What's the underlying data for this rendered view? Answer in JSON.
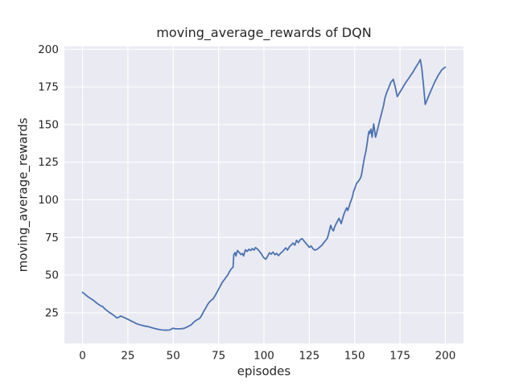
{
  "chart_data": {
    "type": "line",
    "title": "moving_average_rewards of DQN",
    "xlabel": "episodes",
    "ylabel": "moving_average_rewards",
    "x_ticks": [
      0,
      25,
      50,
      75,
      100,
      125,
      150,
      175,
      200
    ],
    "y_ticks": [
      25,
      50,
      75,
      100,
      125,
      150,
      175,
      200
    ],
    "xlim": [
      -10,
      210
    ],
    "ylim": [
      4.5,
      202
    ],
    "grid": true,
    "legend": "none",
    "style": "seaborn-darkgrid",
    "colors": {
      "figure_background": "#ffffff",
      "plot_background": "#eaeaf2",
      "grid": "#ffffff",
      "line": "#4c72b0",
      "text": "#262626"
    },
    "series": [
      {
        "points": [
          [
            0,
            38.5
          ],
          [
            1,
            37.6
          ],
          [
            2,
            36.6
          ],
          [
            3,
            35.6
          ],
          [
            4,
            34.8
          ],
          [
            5,
            34.0
          ],
          [
            6,
            33.2
          ],
          [
            7,
            32.2
          ],
          [
            8,
            31.2
          ],
          [
            9,
            30.4
          ],
          [
            10,
            29.6
          ],
          [
            11,
            29.2
          ],
          [
            12,
            27.9
          ],
          [
            13,
            26.9
          ],
          [
            14,
            25.9
          ],
          [
            15,
            25.0
          ],
          [
            16,
            24.3
          ],
          [
            17,
            23.4
          ],
          [
            18,
            22.5
          ],
          [
            19,
            21.5
          ],
          [
            20,
            22.0
          ],
          [
            21,
            22.8
          ],
          [
            22,
            22.3
          ],
          [
            24,
            21.2
          ],
          [
            26,
            20.0
          ],
          [
            28,
            18.8
          ],
          [
            30,
            17.6
          ],
          [
            32,
            16.8
          ],
          [
            34,
            16.2
          ],
          [
            36,
            15.8
          ],
          [
            38,
            15.1
          ],
          [
            40,
            14.4
          ],
          [
            42,
            13.9
          ],
          [
            44,
            13.5
          ],
          [
            46,
            13.4
          ],
          [
            48,
            13.5
          ],
          [
            50,
            14.7
          ],
          [
            51,
            14.3
          ],
          [
            52,
            14.3
          ],
          [
            54,
            14.3
          ],
          [
            56,
            14.6
          ],
          [
            58,
            15.7
          ],
          [
            60,
            17.0
          ],
          [
            61,
            18.3
          ],
          [
            62,
            19.4
          ],
          [
            63,
            20.2
          ],
          [
            64,
            20.8
          ],
          [
            65,
            21.8
          ],
          [
            66,
            24.0
          ],
          [
            67,
            26.3
          ],
          [
            68,
            28.3
          ],
          [
            69,
            30.5
          ],
          [
            70,
            32.2
          ],
          [
            71,
            33.3
          ],
          [
            72,
            34.2
          ],
          [
            73,
            36.2
          ],
          [
            74,
            38.3
          ],
          [
            75,
            40.6
          ],
          [
            76,
            42.8
          ],
          [
            77,
            45.1
          ],
          [
            78,
            46.7
          ],
          [
            79,
            48.4
          ],
          [
            80,
            49.9
          ],
          [
            81,
            52.3
          ],
          [
            82,
            54.1
          ],
          [
            83,
            55.3
          ],
          [
            83.4,
            63.6
          ],
          [
            84,
            64.9
          ],
          [
            84.6,
            62.7
          ],
          [
            85.4,
            66.3
          ],
          [
            86.4,
            65.0
          ],
          [
            87.3,
            63.6
          ],
          [
            88,
            64.4
          ],
          [
            88.8,
            62.7
          ],
          [
            89.8,
            66.8
          ],
          [
            90.8,
            65.7
          ],
          [
            91.7,
            67.2
          ],
          [
            92.7,
            66.3
          ],
          [
            93.5,
            67.6
          ],
          [
            94.6,
            66.6
          ],
          [
            95.3,
            68.3
          ],
          [
            96.5,
            67.2
          ],
          [
            97.6,
            65.7
          ],
          [
            98.7,
            63.9
          ],
          [
            99.7,
            61.8
          ],
          [
            101,
            60.5
          ],
          [
            102,
            62.4
          ],
          [
            103,
            64.8
          ],
          [
            104,
            63.9
          ],
          [
            105,
            65.3
          ],
          [
            106,
            63.5
          ],
          [
            107,
            64.4
          ],
          [
            108,
            62.9
          ],
          [
            109,
            64.3
          ],
          [
            110,
            65.4
          ],
          [
            111,
            66.6
          ],
          [
            112,
            68.1
          ],
          [
            113,
            66.6
          ],
          [
            114,
            68.8
          ],
          [
            115,
            69.9
          ],
          [
            116,
            71.3
          ],
          [
            117,
            69.9
          ],
          [
            118,
            73.1
          ],
          [
            119,
            71.6
          ],
          [
            120,
            73.5
          ],
          [
            121,
            74.3
          ],
          [
            122,
            72.8
          ],
          [
            123,
            71.3
          ],
          [
            124,
            69.9
          ],
          [
            125,
            68.4
          ],
          [
            126,
            69.3
          ],
          [
            127,
            67.5
          ],
          [
            128,
            66.6
          ],
          [
            129,
            66.9
          ],
          [
            130,
            67.8
          ],
          [
            131,
            68.8
          ],
          [
            132,
            69.9
          ],
          [
            133,
            71.5
          ],
          [
            134,
            73.0
          ],
          [
            135,
            74.6
          ],
          [
            136,
            79.1
          ],
          [
            136.8,
            83.1
          ],
          [
            137.6,
            80.4
          ],
          [
            138.3,
            79.4
          ],
          [
            139,
            82.0
          ],
          [
            140,
            84.6
          ],
          [
            141,
            86.9
          ],
          [
            141.4,
            87.7
          ],
          [
            142,
            85.9
          ],
          [
            142.6,
            84.2
          ],
          [
            143.4,
            87.7
          ],
          [
            144.3,
            91.2
          ],
          [
            145,
            93.1
          ],
          [
            145.6,
            94.7
          ],
          [
            146.2,
            92.9
          ],
          [
            147,
            95.8
          ],
          [
            147.7,
            98.5
          ],
          [
            148.4,
            100.6
          ],
          [
            149,
            103.1
          ],
          [
            149.4,
            105.5
          ],
          [
            150,
            107.2
          ],
          [
            151,
            110.8
          ],
          [
            152,
            112.2
          ],
          [
            152.5,
            113.1
          ],
          [
            153.2,
            114.4
          ],
          [
            153.7,
            116.2
          ],
          [
            154.1,
            118.8
          ],
          [
            154.7,
            123.3
          ],
          [
            155.5,
            128.6
          ],
          [
            156.2,
            132.2
          ],
          [
            157,
            138.5
          ],
          [
            157.5,
            143.0
          ],
          [
            157.9,
            145.5
          ],
          [
            158.3,
            144.1
          ],
          [
            159,
            147.0
          ],
          [
            159.6,
            141.6
          ],
          [
            160.5,
            150.4
          ],
          [
            161.5,
            141.6
          ],
          [
            162,
            143.6
          ],
          [
            163,
            148.6
          ],
          [
            164,
            153.6
          ],
          [
            165,
            158.2
          ],
          [
            166,
            163.0
          ],
          [
            166.7,
            167.7
          ],
          [
            167.7,
            171.4
          ],
          [
            168.9,
            174.9
          ],
          [
            170,
            178.2
          ],
          [
            171.3,
            180.1
          ],
          [
            172.3,
            175.4
          ],
          [
            173.5,
            168.6
          ],
          [
            174.5,
            170.6
          ],
          [
            176,
            173.6
          ],
          [
            178,
            177.6
          ],
          [
            180,
            181.1
          ],
          [
            182,
            184.6
          ],
          [
            184,
            188.7
          ],
          [
            185.5,
            191.6
          ],
          [
            186.2,
            193.2
          ],
          [
            187,
            187.5
          ],
          [
            188,
            175.5
          ],
          [
            188.9,
            163.4
          ],
          [
            190,
            166.6
          ],
          [
            191,
            169.6
          ],
          [
            192,
            172.4
          ],
          [
            194,
            177.9
          ],
          [
            196,
            182.6
          ],
          [
            198,
            186.3
          ],
          [
            199,
            187.4
          ],
          [
            200,
            188.1
          ]
        ]
      }
    ]
  }
}
